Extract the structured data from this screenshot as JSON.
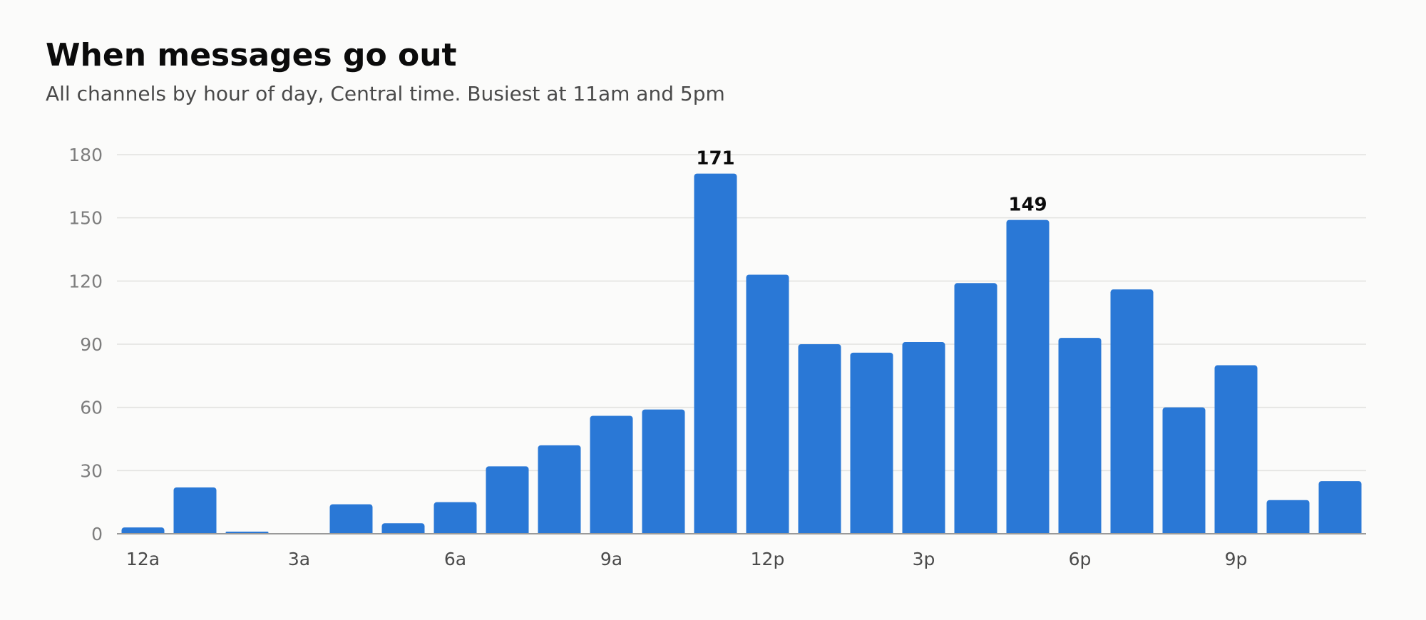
{
  "chart_data": {
    "type": "bar",
    "title": "When messages go out",
    "subtitle": "All channels by hour of day, Central time. Busiest at 11am and 5pm",
    "xlabel": "",
    "ylabel": "",
    "ylim": [
      0,
      180
    ],
    "yticks": [
      0,
      30,
      60,
      90,
      120,
      150,
      180
    ],
    "grid": true,
    "bar_color": "#2a78d6",
    "categories": [
      "12a",
      "1a",
      "2a",
      "3a",
      "4a",
      "5a",
      "6a",
      "7a",
      "8a",
      "9a",
      "10a",
      "11a",
      "12p",
      "1p",
      "2p",
      "3p",
      "4p",
      "5p",
      "6p",
      "7p",
      "8p",
      "9p",
      "10p",
      "11p"
    ],
    "x_tick_labels": [
      "12a",
      "",
      "",
      "3a",
      "",
      "",
      "6a",
      "",
      "",
      "9a",
      "",
      "",
      "12p",
      "",
      "",
      "3p",
      "",
      "",
      "6p",
      "",
      "",
      "9p",
      "",
      ""
    ],
    "values": [
      3,
      22,
      1,
      0,
      14,
      5,
      15,
      32,
      42,
      56,
      59,
      171,
      123,
      90,
      86,
      91,
      119,
      149,
      93,
      116,
      60,
      80,
      16,
      25
    ],
    "data_labels": [
      "",
      "",
      "",
      "",
      "",
      "",
      "",
      "",
      "",
      "",
      "",
      "171",
      "",
      "",
      "",
      "",
      "",
      "149",
      "",
      "",
      "",
      "",
      "",
      ""
    ]
  }
}
